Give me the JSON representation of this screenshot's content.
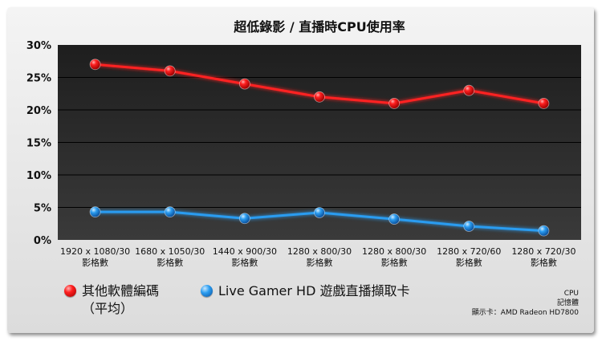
{
  "chart_data": {
    "type": "line",
    "title": "超低錄影 / 直播時CPU使用率",
    "categories": [
      [
        "1920 x 1080/30",
        "影格數"
      ],
      [
        "1680 x 1050/30",
        "影格數"
      ],
      [
        "1440 x 900/30",
        "影格數"
      ],
      [
        "1280 x 800/30",
        "影格數"
      ],
      [
        "1280 x 800/30",
        "影格數"
      ],
      [
        "1280 x 720/60",
        "影格數"
      ],
      [
        "1280 x 720/30",
        "影格數"
      ]
    ],
    "series": [
      {
        "name": "其他軟體編碼（平均）",
        "name_lines": [
          "其他軟體編碼",
          "（平均）"
        ],
        "color": "#ff2020",
        "values": [
          27,
          26,
          24,
          22,
          21,
          23,
          21
        ]
      },
      {
        "name": "Live Gamer HD 遊戲直播擷取卡",
        "color": "#2a9cf0",
        "values": [
          4.3,
          4.3,
          3.3,
          4.2,
          3.2,
          2.1,
          1.4
        ]
      }
    ],
    "yticks": [
      "0%",
      "5%",
      "10%",
      "15%",
      "20%",
      "25%",
      "30%"
    ],
    "ylim": [
      0,
      30
    ],
    "grid": true,
    "legend": "bottom-left"
  },
  "notes": [
    "CPU",
    "記憶體",
    "顯示卡：AMD Radeon HD7800"
  ]
}
